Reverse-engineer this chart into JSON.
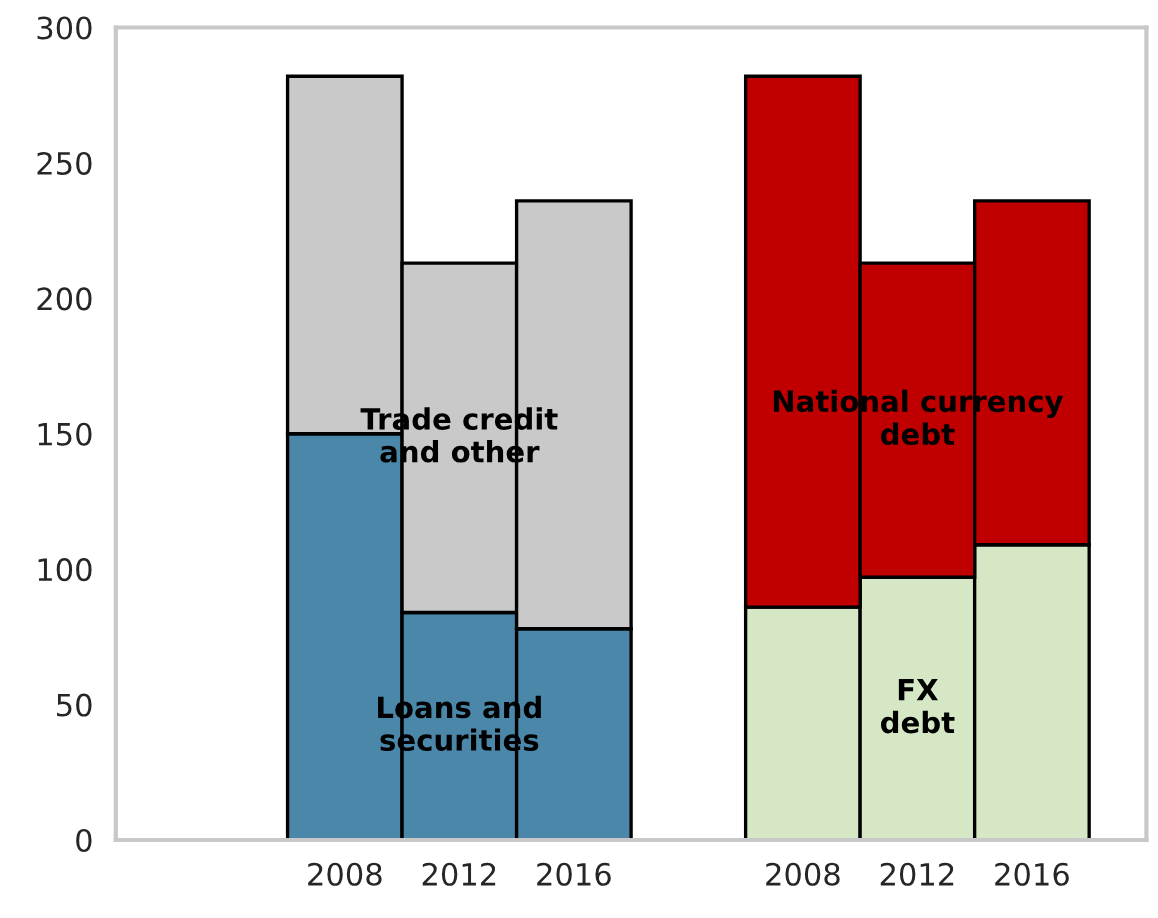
{
  "chart_data": {
    "type": "bar",
    "stacked": true,
    "categories": [
      "2008",
      "2012",
      "2016",
      null,
      "2008",
      "2012",
      "2016"
    ],
    "series": [
      {
        "name": "Loans and securities",
        "color": "#4a87a8",
        "values": [
          150,
          84,
          78,
          null,
          null,
          null,
          null
        ]
      },
      {
        "name": "Trade credit and other",
        "color": "#c9c9c9",
        "values": [
          132,
          129,
          158,
          null,
          null,
          null,
          null
        ]
      },
      {
        "name": "FX debt",
        "color": "#d6e7c6",
        "values": [
          null,
          null,
          null,
          null,
          86,
          97,
          109
        ]
      },
      {
        "name": "National currency debt",
        "color": "#c00000",
        "values": [
          null,
          null,
          null,
          null,
          196,
          116,
          127
        ]
      }
    ],
    "ylim": [
      0,
      300
    ],
    "yticks": [
      0,
      50,
      100,
      150,
      200,
      250,
      300
    ],
    "grid": false,
    "legend": false
  }
}
